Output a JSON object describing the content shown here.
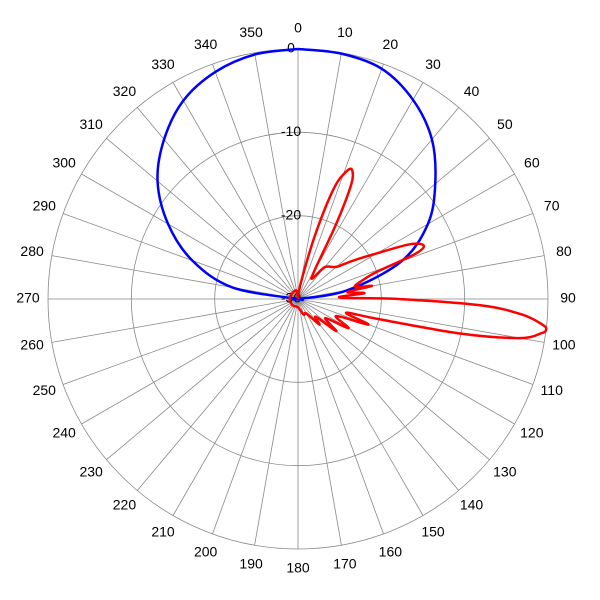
{
  "chart_data": {
    "type": "polar",
    "rlim": [
      -30,
      0
    ],
    "rticks": [
      0,
      -10,
      -20,
      -30
    ],
    "thetaticks": [
      0,
      10,
      20,
      30,
      40,
      50,
      60,
      70,
      80,
      90,
      100,
      110,
      120,
      130,
      140,
      150,
      160,
      170,
      180,
      190,
      200,
      210,
      220,
      230,
      240,
      250,
      260,
      270,
      280,
      290,
      300,
      310,
      320,
      330,
      340,
      350
    ],
    "grid": true,
    "series": [
      {
        "color": "#0000ff",
        "theta": [
          0,
          10,
          20,
          30,
          40,
          50,
          60,
          70,
          80,
          90,
          100,
          120,
          150,
          180,
          210,
          240,
          260,
          270,
          280,
          290,
          300,
          310,
          320,
          330,
          340,
          350,
          360
        ],
        "values": [
          0,
          -0.1,
          -0.6,
          -2.4,
          -5,
          -8.5,
          -12,
          -16.8,
          -24,
          -30,
          -30,
          -30,
          -30,
          -30,
          -30,
          -30,
          -30,
          -30,
          -22,
          -16.5,
          -12,
          -8,
          -5,
          -2.5,
          -1,
          -0.2,
          0
        ]
      },
      {
        "color": "#ff0000",
        "theta": [
          0,
          10,
          15,
          18,
          21,
          23,
          25,
          27,
          30,
          35,
          40,
          50,
          55,
          60,
          64,
          67,
          69,
          71,
          74,
          78,
          80,
          82,
          85,
          88,
          90,
          92,
          94,
          96,
          97,
          98,
          100,
          102,
          104,
          106,
          110,
          114,
          120,
          125,
          130,
          135,
          140,
          150,
          160,
          180,
          220,
          270,
          320,
          350,
          360
        ],
        "values": [
          -30,
          -28,
          -22,
          -16,
          -13.5,
          -13.3,
          -15,
          -20,
          -26,
          -27,
          -25,
          -24,
          -22,
          -19,
          -15,
          -13.6,
          -15,
          -20,
          -22,
          -23,
          -21,
          -24,
          -22,
          -25,
          -18,
          -8,
          -3,
          -0.5,
          0,
          -0.5,
          -3,
          -10,
          -20,
          -24,
          -21,
          -25,
          -23,
          -26,
          -24,
          -27,
          -26,
          -28,
          -28,
          -29,
          -29,
          -29,
          -29,
          -29,
          -30
        ]
      }
    ]
  }
}
